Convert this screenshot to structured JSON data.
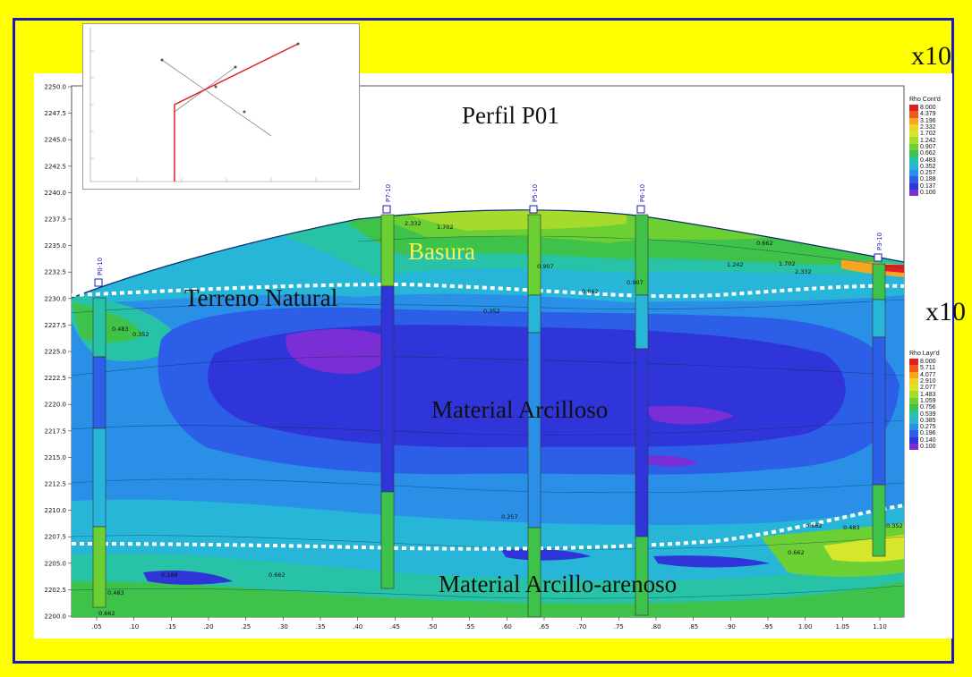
{
  "title": "Perfil  P01",
  "unit_labels": {
    "top": "x10",
    "middle": "x10"
  },
  "annotations": {
    "basura": "Basura",
    "terreno_natural": "Terreno Natural",
    "material_arcilloso": "Material Arcilloso",
    "material_arcillo_arenoso": "Material Arcillo-arenoso"
  },
  "y_ticks": [
    "2250.0",
    "2247.5",
    "2245.0",
    "2242.5",
    "2240.0",
    "2237.5",
    "2235.0",
    "2232.5",
    "2230.0",
    "2227.5",
    "2225.0",
    "2222.5",
    "2220.0",
    "2217.5",
    "2215.0",
    "2212.5",
    "2210.0",
    "2207.5",
    "2205.0",
    "2202.5",
    "2200.0"
  ],
  "x_ticks": [
    ".05",
    ".10",
    ".15",
    ".20",
    ".25",
    ".30",
    ".35",
    ".40",
    ".45",
    ".50",
    ".55",
    ".60",
    ".65",
    ".70",
    ".75",
    ".80",
    ".85",
    ".90",
    ".95",
    "1.00",
    "1.05",
    "1.10"
  ],
  "boreholes": [
    {
      "name": "P0-10"
    },
    {
      "name": "P7-10"
    },
    {
      "name": "P5-10"
    },
    {
      "name": "P6-10"
    },
    {
      "name": "P3-10"
    }
  ],
  "legend_top": {
    "title": "Rho Cont'd",
    "values": [
      "8.000",
      "4.379",
      "3.196",
      "2.332",
      "1.702",
      "1.242",
      "0.907",
      "0.662",
      "0.483",
      "0.352",
      "0.257",
      "0.188",
      "0.137",
      "0.100"
    ],
    "colors": [
      "#e02020",
      "#f05a1e",
      "#f5a623",
      "#f2d02a",
      "#d6e62a",
      "#a6db2d",
      "#6ccf33",
      "#3fc24a",
      "#28c3a6",
      "#27b6d8",
      "#2a8fe6",
      "#2d5ee8",
      "#2f35d8",
      "#7a2fd6"
    ]
  },
  "legend_bottom": {
    "title": "Rho Layr'd",
    "values": [
      "8.000",
      "5.711",
      "4.077",
      "2.910",
      "2.077",
      "1.483",
      "1.059",
      "0.756",
      "0.539",
      "0.385",
      "0.275",
      "0.196",
      "0.140",
      "0.100"
    ],
    "colors": [
      "#e02020",
      "#f05a1e",
      "#f5a623",
      "#f2d02a",
      "#d6e62a",
      "#a6db2d",
      "#6ccf33",
      "#3fc24a",
      "#28c3a6",
      "#27b6d8",
      "#2a8fe6",
      "#2d5ee8",
      "#2f35d8",
      "#7a2fd6"
    ]
  },
  "contour_labels": [
    "2.332",
    "1.702",
    "0.662",
    "1.242",
    "1.702",
    "2.332",
    "0.662",
    "0.352",
    "0.483",
    "0.352",
    "0.257",
    "0.662",
    "0.483",
    "0.662",
    "0.188",
    "0.352",
    "0.483",
    "0.662",
    "0.907",
    "0.907",
    "0.662"
  ]
}
